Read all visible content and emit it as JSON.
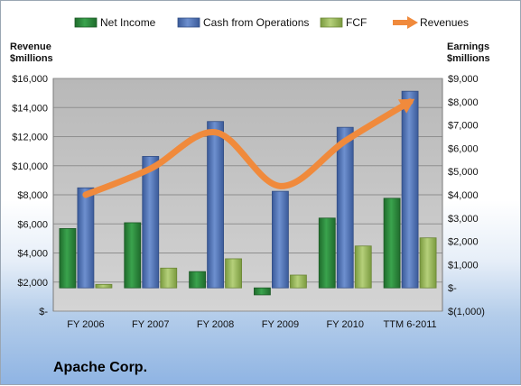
{
  "company_label": "Apache Corp.",
  "colors": {
    "net_income": "#2e8b3e",
    "cash_from_operations": "#4f73b8",
    "fcf": "#9bbb59",
    "revenues": "#f08a3c",
    "plot_area": "#c4c4c4"
  },
  "chart_data": {
    "type": "bar",
    "categories": [
      "FY 2006",
      "FY 2007",
      "FY 2008",
      "FY 2009",
      "FY 2010",
      "TTM 6-2011"
    ],
    "series": [
      {
        "name": "Net Income",
        "type": "bar",
        "axis": "right",
        "values": [
          2550,
          2800,
          700,
          -300,
          3000,
          3850
        ]
      },
      {
        "name": "Cash from Operations",
        "type": "bar",
        "axis": "right",
        "values": [
          4300,
          5650,
          7150,
          4150,
          6900,
          8450
        ]
      },
      {
        "name": "FCF",
        "type": "bar",
        "axis": "right",
        "values": [
          150,
          850,
          1250,
          550,
          1800,
          2150
        ]
      },
      {
        "name": "Revenues",
        "type": "line",
        "axis": "left",
        "values": [
          8000,
          9800,
          12300,
          8600,
          11700,
          14400
        ]
      }
    ],
    "left_axis": {
      "label": "Revenue\n$millions",
      "min": 0,
      "max": 16000,
      "step": 2000,
      "ticks": [
        "$-",
        "$2,000",
        "$4,000",
        "$6,000",
        "$8,000",
        "$10,000",
        "$12,000",
        "$14,000",
        "$16,000"
      ]
    },
    "right_axis": {
      "label": "Earnings\n$millions",
      "min": -1000,
      "max": 9000,
      "step": 1000,
      "ticks": [
        "$(1,000)",
        "$-",
        "$1,000",
        "$2,000",
        "$3,000",
        "$4,000",
        "$5,000",
        "$6,000",
        "$7,000",
        "$8,000",
        "$9,000"
      ]
    },
    "grid": true,
    "legend_position": "top"
  }
}
